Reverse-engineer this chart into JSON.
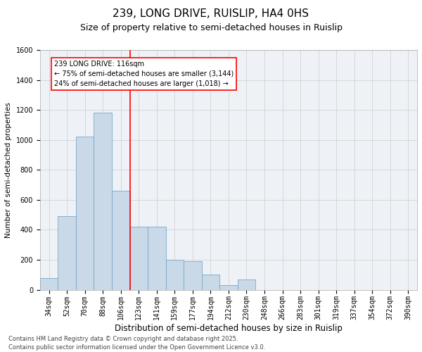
{
  "title1": "239, LONG DRIVE, RUISLIP, HA4 0HS",
  "title2": "Size of property relative to semi-detached houses in Ruislip",
  "xlabel": "Distribution of semi-detached houses by size in Ruislip",
  "ylabel": "Number of semi-detached properties",
  "categories": [
    "34sqm",
    "52sqm",
    "70sqm",
    "88sqm",
    "106sqm",
    "123sqm",
    "141sqm",
    "159sqm",
    "177sqm",
    "194sqm",
    "212sqm",
    "230sqm",
    "248sqm",
    "266sqm",
    "283sqm",
    "301sqm",
    "319sqm",
    "337sqm",
    "354sqm",
    "372sqm",
    "390sqm"
  ],
  "bar_values": [
    80,
    490,
    1020,
    1180,
    660,
    420,
    420,
    200,
    190,
    100,
    30,
    70,
    0,
    0,
    0,
    0,
    0,
    0,
    0,
    0,
    0
  ],
  "bar_color": "#c9d9e8",
  "bar_edge_color": "#7aa8c8",
  "grid_color": "#cccccc",
  "vline_color": "red",
  "annotation_line1": "239 LONG DRIVE: 116sqm",
  "annotation_line2": "← 75% of semi-detached houses are smaller (3,144)",
  "annotation_line3": "24% of semi-detached houses are larger (1,018) →",
  "ylim": [
    0,
    1600
  ],
  "yticks": [
    0,
    200,
    400,
    600,
    800,
    1000,
    1200,
    1400,
    1600
  ],
  "footer1": "Contains HM Land Registry data © Crown copyright and database right 2025.",
  "footer2": "Contains public sector information licensed under the Open Government Licence v3.0.",
  "title1_fontsize": 11,
  "title2_fontsize": 9,
  "xlabel_fontsize": 8.5,
  "ylabel_fontsize": 7.5,
  "tick_fontsize": 7,
  "annot_fontsize": 7,
  "footer_fontsize": 6,
  "bg_color": "#eef2f7"
}
